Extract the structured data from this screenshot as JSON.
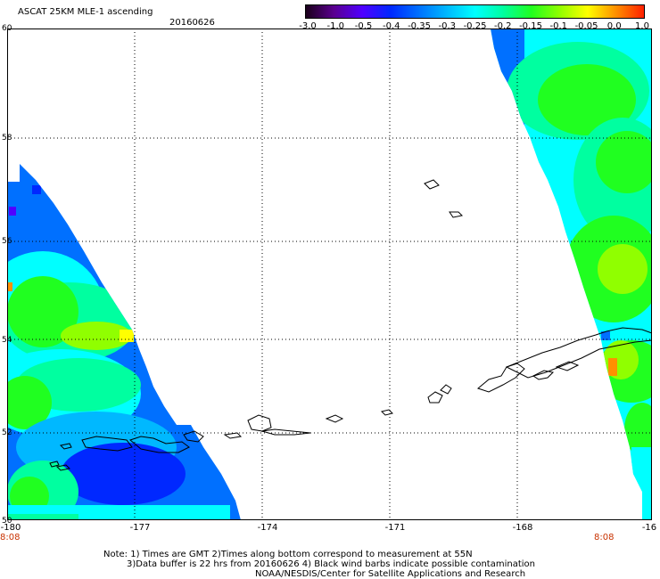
{
  "header": {
    "title": "ASCAT 25KM MLE-1 ascending",
    "date": "20160626"
  },
  "colorbar": {
    "labels": [
      "-3.0",
      "-1.0",
      "-0.5",
      "-0.4",
      "-0.35",
      "-0.3",
      "-0.25",
      "-0.2",
      "-0.15",
      "-0.1",
      "-0.05",
      "0.0",
      "1.0"
    ],
    "colors": [
      "#1a001a",
      "#5a0090",
      "#5000ff",
      "#0028ff",
      "#0070ff",
      "#00b8ff",
      "#00ffff",
      "#00ffa0",
      "#20ff20",
      "#90ff00",
      "#ffff00",
      "#ff9000",
      "#ff2000"
    ]
  },
  "axes": {
    "lat_labels": [
      "60",
      "58",
      "56",
      "54",
      "52",
      "50"
    ],
    "lon_labels": [
      "-180",
      "-177",
      "-174",
      "-171",
      "-168",
      "-16"
    ],
    "time_left": "8:08",
    "time_right": "8:08"
  },
  "notes": {
    "line1": "Note: 1) Times are GMT 2)Times along bottom correspond to measurement at 55N",
    "line2": "3)Data buffer is 22 hrs from 20160626 4) Black wind barbs indicate possible contamination",
    "line3": "NOAA/NESDIS/Center for Satellite Applications and Research"
  },
  "map": {
    "lon_range": [
      -180,
      -165
    ],
    "lat_range": [
      50,
      60
    ],
    "grid": true,
    "swaths": [
      "west swath (left edge)",
      "east swath (right edge)"
    ],
    "palette": {
      "blue": "#0070ff",
      "light_blue": "#00b8ff",
      "cyan": "#00ffff",
      "aqua_green": "#00ffa0",
      "green": "#20ff20",
      "yellow_green": "#90ff00",
      "yellow": "#ffff00",
      "orange": "#ff9000",
      "dark_blue": "#0028ff",
      "purple": "#5000ff"
    }
  }
}
